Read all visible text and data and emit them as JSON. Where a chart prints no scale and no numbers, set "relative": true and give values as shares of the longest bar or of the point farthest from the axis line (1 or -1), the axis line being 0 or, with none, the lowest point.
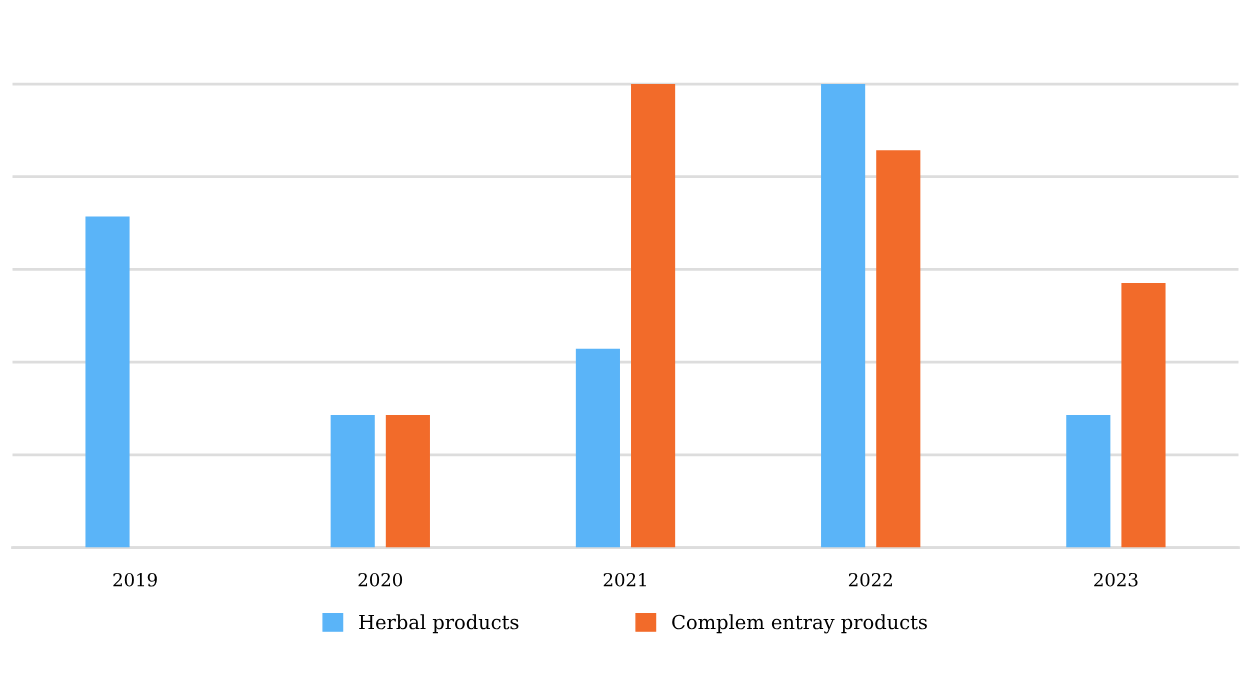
{
  "chart_data": {
    "type": "bar",
    "relative": true,
    "categories": [
      "2019",
      "2020",
      "2021",
      "2022",
      "2023"
    ],
    "series": [
      {
        "name": "Herbal products",
        "color": "#5ab4f8",
        "values": [
          0.714,
          0.286,
          0.429,
          1,
          0.286
        ]
      },
      {
        "name": "Complem entray products",
        "color": "#f26b2a",
        "values": [
          0,
          0.286,
          1,
          0.857,
          0.571
        ]
      }
    ],
    "grid": "y",
    "legend": "bottom"
  }
}
